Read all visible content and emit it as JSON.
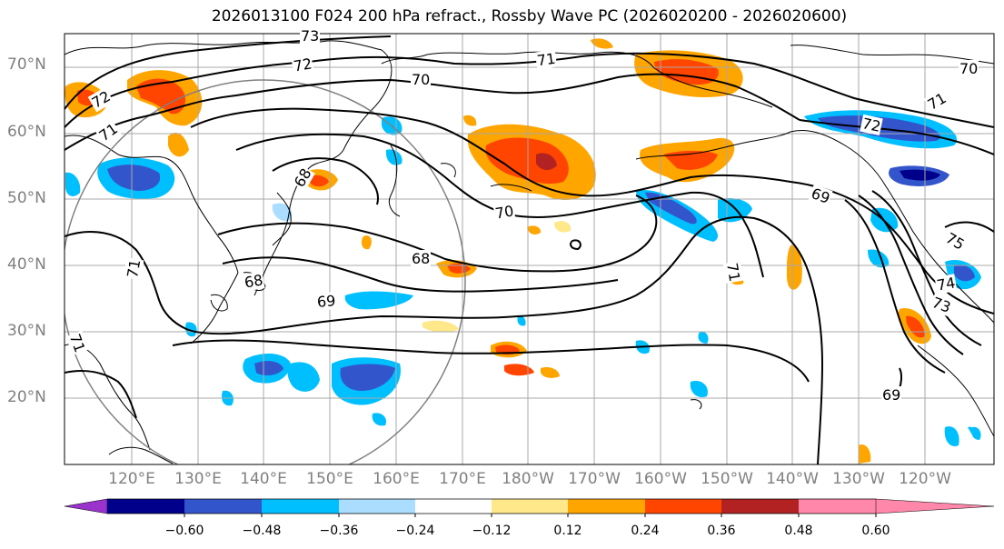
{
  "title": "2026013100 F024 200 hPa refract., Rossby Wave PC (2026020200 - 2026020600)",
  "lat_labels": [
    "70°N",
    "60°N",
    "50°N",
    "40°N",
    "30°N",
    "20°N"
  ],
  "lon_labels": [
    "120°E",
    "130°E",
    "140°E",
    "150°E",
    "160°E",
    "170°E",
    "180°W",
    "170°W",
    "160°W",
    "150°W",
    "140°W",
    "130°W",
    "120°W"
  ],
  "contour_labels": [
    "73",
    "72",
    "71",
    "70",
    "71",
    "70",
    "71",
    "72",
    "72",
    "68",
    "70",
    "69",
    "68",
    "68",
    "69",
    "71",
    "75",
    "74",
    "73",
    "71",
    "69",
    "71"
  ],
  "colorbar": {
    "colors": [
      "#9933cc",
      "#00008b",
      "#3355cc",
      "#00bfff",
      "#aaddff",
      "#ffffff",
      "#ffe88a",
      "#ffa500",
      "#ff4500",
      "#b22222",
      "#ff88aa"
    ],
    "tick_labels": [
      "−0.60",
      "−0.48",
      "−0.36",
      "−0.24",
      "−0.12",
      "0.12",
      "0.24",
      "0.36",
      "0.48",
      "0.60"
    ]
  }
}
